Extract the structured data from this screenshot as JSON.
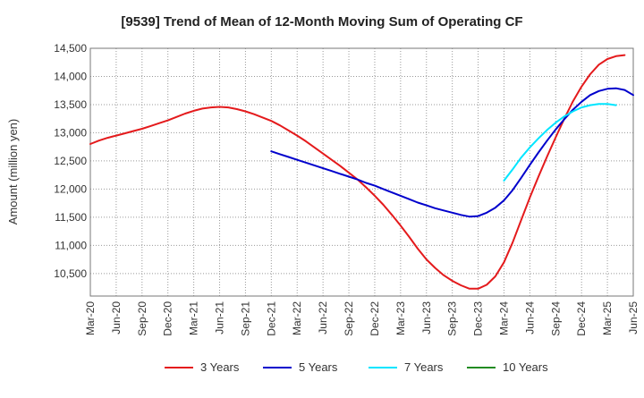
{
  "chart_data": {
    "type": "line",
    "title": "[9539]  Trend of Mean of 12-Month Moving Sum of Operating CF",
    "xlabel": "",
    "ylabel": "Amount (million yen)",
    "ylim": [
      10100,
      14500
    ],
    "yticks": [
      10500,
      11000,
      11500,
      12000,
      12500,
      13000,
      13500,
      14000,
      14500
    ],
    "ytick_labels": [
      "10,500",
      "11,000",
      "11,500",
      "12,000",
      "12,500",
      "13,000",
      "13,500",
      "14,000",
      "14,500"
    ],
    "x_start": "Mar-20",
    "x_end": "Jun-25",
    "xtick_labels": [
      "Mar-20",
      "Jun-20",
      "Sep-20",
      "Dec-20",
      "Mar-21",
      "Jun-21",
      "Sep-21",
      "Dec-21",
      "Mar-22",
      "Jun-22",
      "Sep-22",
      "Dec-22",
      "Mar-23",
      "Jun-23",
      "Sep-23",
      "Dec-23",
      "Mar-24",
      "Jun-24",
      "Sep-24",
      "Dec-24",
      "Mar-25",
      "Jun-25"
    ],
    "legend_position": "bottom",
    "grid": true,
    "series": [
      {
        "name": "3 Years",
        "color": "#e41a1c",
        "start_month_index": 0,
        "values": [
          12800,
          12860,
          12910,
          12950,
          12990,
          13030,
          13070,
          13120,
          13170,
          13220,
          13280,
          13340,
          13390,
          13430,
          13450,
          13460,
          13450,
          13420,
          13380,
          13330,
          13270,
          13210,
          13130,
          13040,
          12950,
          12850,
          12740,
          12630,
          12520,
          12410,
          12290,
          12170,
          12030,
          11880,
          11720,
          11540,
          11350,
          11150,
          10940,
          10750,
          10600,
          10470,
          10370,
          10290,
          10230,
          10230,
          10300,
          10450,
          10700,
          11050,
          11450,
          11850,
          12220,
          12580,
          12920,
          13250,
          13560,
          13820,
          14040,
          14210,
          14310,
          14360,
          14380
        ]
      },
      {
        "name": "5 Years",
        "color": "#0000cc",
        "start_month_index": 21,
        "values": [
          12670,
          12620,
          12570,
          12520,
          12470,
          12420,
          12370,
          12320,
          12270,
          12220,
          12170,
          12110,
          12060,
          12000,
          11940,
          11880,
          11820,
          11760,
          11710,
          11660,
          11620,
          11580,
          11540,
          11510,
          11520,
          11580,
          11670,
          11800,
          11980,
          12200,
          12430,
          12650,
          12860,
          13060,
          13240,
          13410,
          13550,
          13670,
          13740,
          13780,
          13790,
          13760,
          13670
        ]
      },
      {
        "name": "7 Years",
        "color": "#00e5ff",
        "start_month_index": 48,
        "values": [
          12150,
          12350,
          12560,
          12740,
          12900,
          13050,
          13180,
          13290,
          13380,
          13450,
          13490,
          13510,
          13510,
          13490
        ]
      },
      {
        "name": "10 Years",
        "color": "#228b22",
        "start_month_index": 0,
        "values": []
      }
    ]
  }
}
